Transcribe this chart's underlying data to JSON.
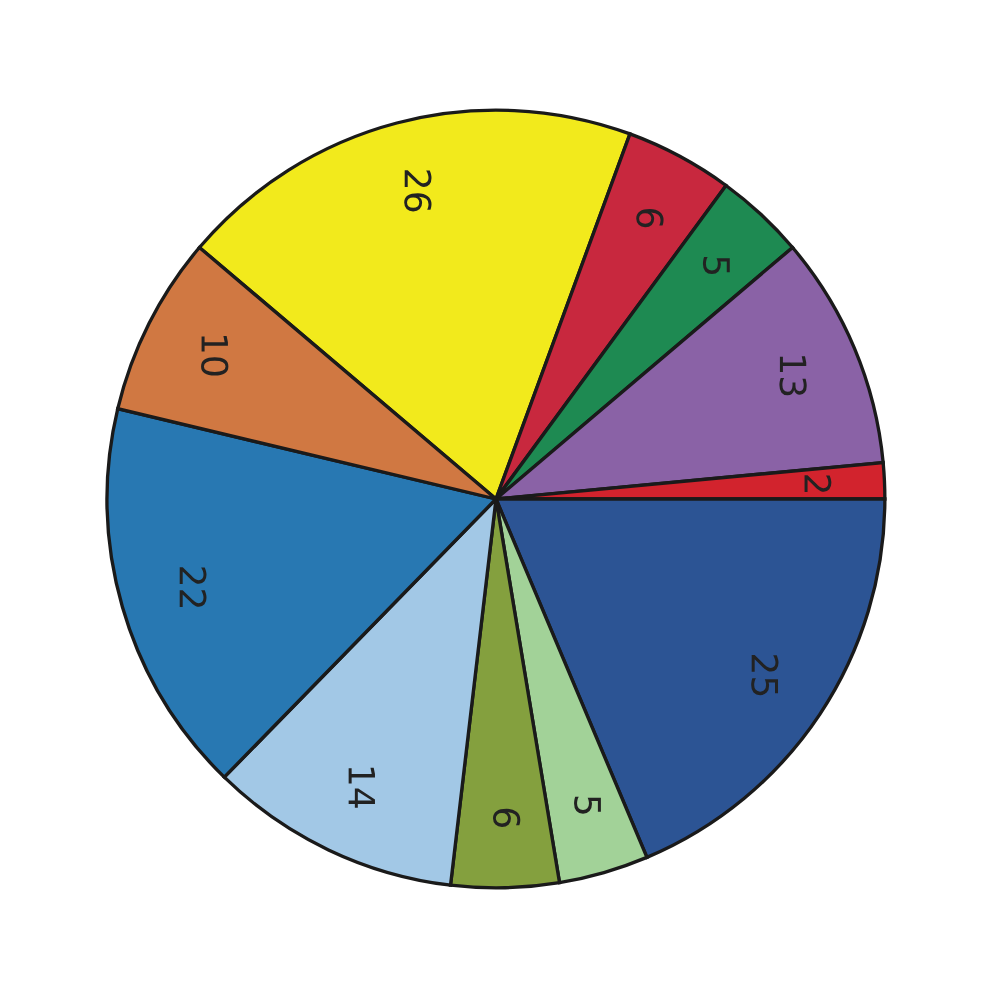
{
  "chart_data": {
    "type": "pie",
    "categories": [
      null,
      null,
      null,
      null,
      null,
      null,
      null,
      null,
      null,
      null,
      null
    ],
    "values": [
      26,
      6,
      5,
      13,
      2,
      25,
      5,
      6,
      14,
      22,
      10
    ],
    "colors": [
      "#f2ea1c",
      "#c8283e",
      "#1e8a52",
      "#8a62a6",
      "#d2232d",
      "#2c5494",
      "#a2d298",
      "#84a03e",
      "#a2c8e6",
      "#2878b2",
      "#d07842"
    ],
    "data_labels": true
  }
}
